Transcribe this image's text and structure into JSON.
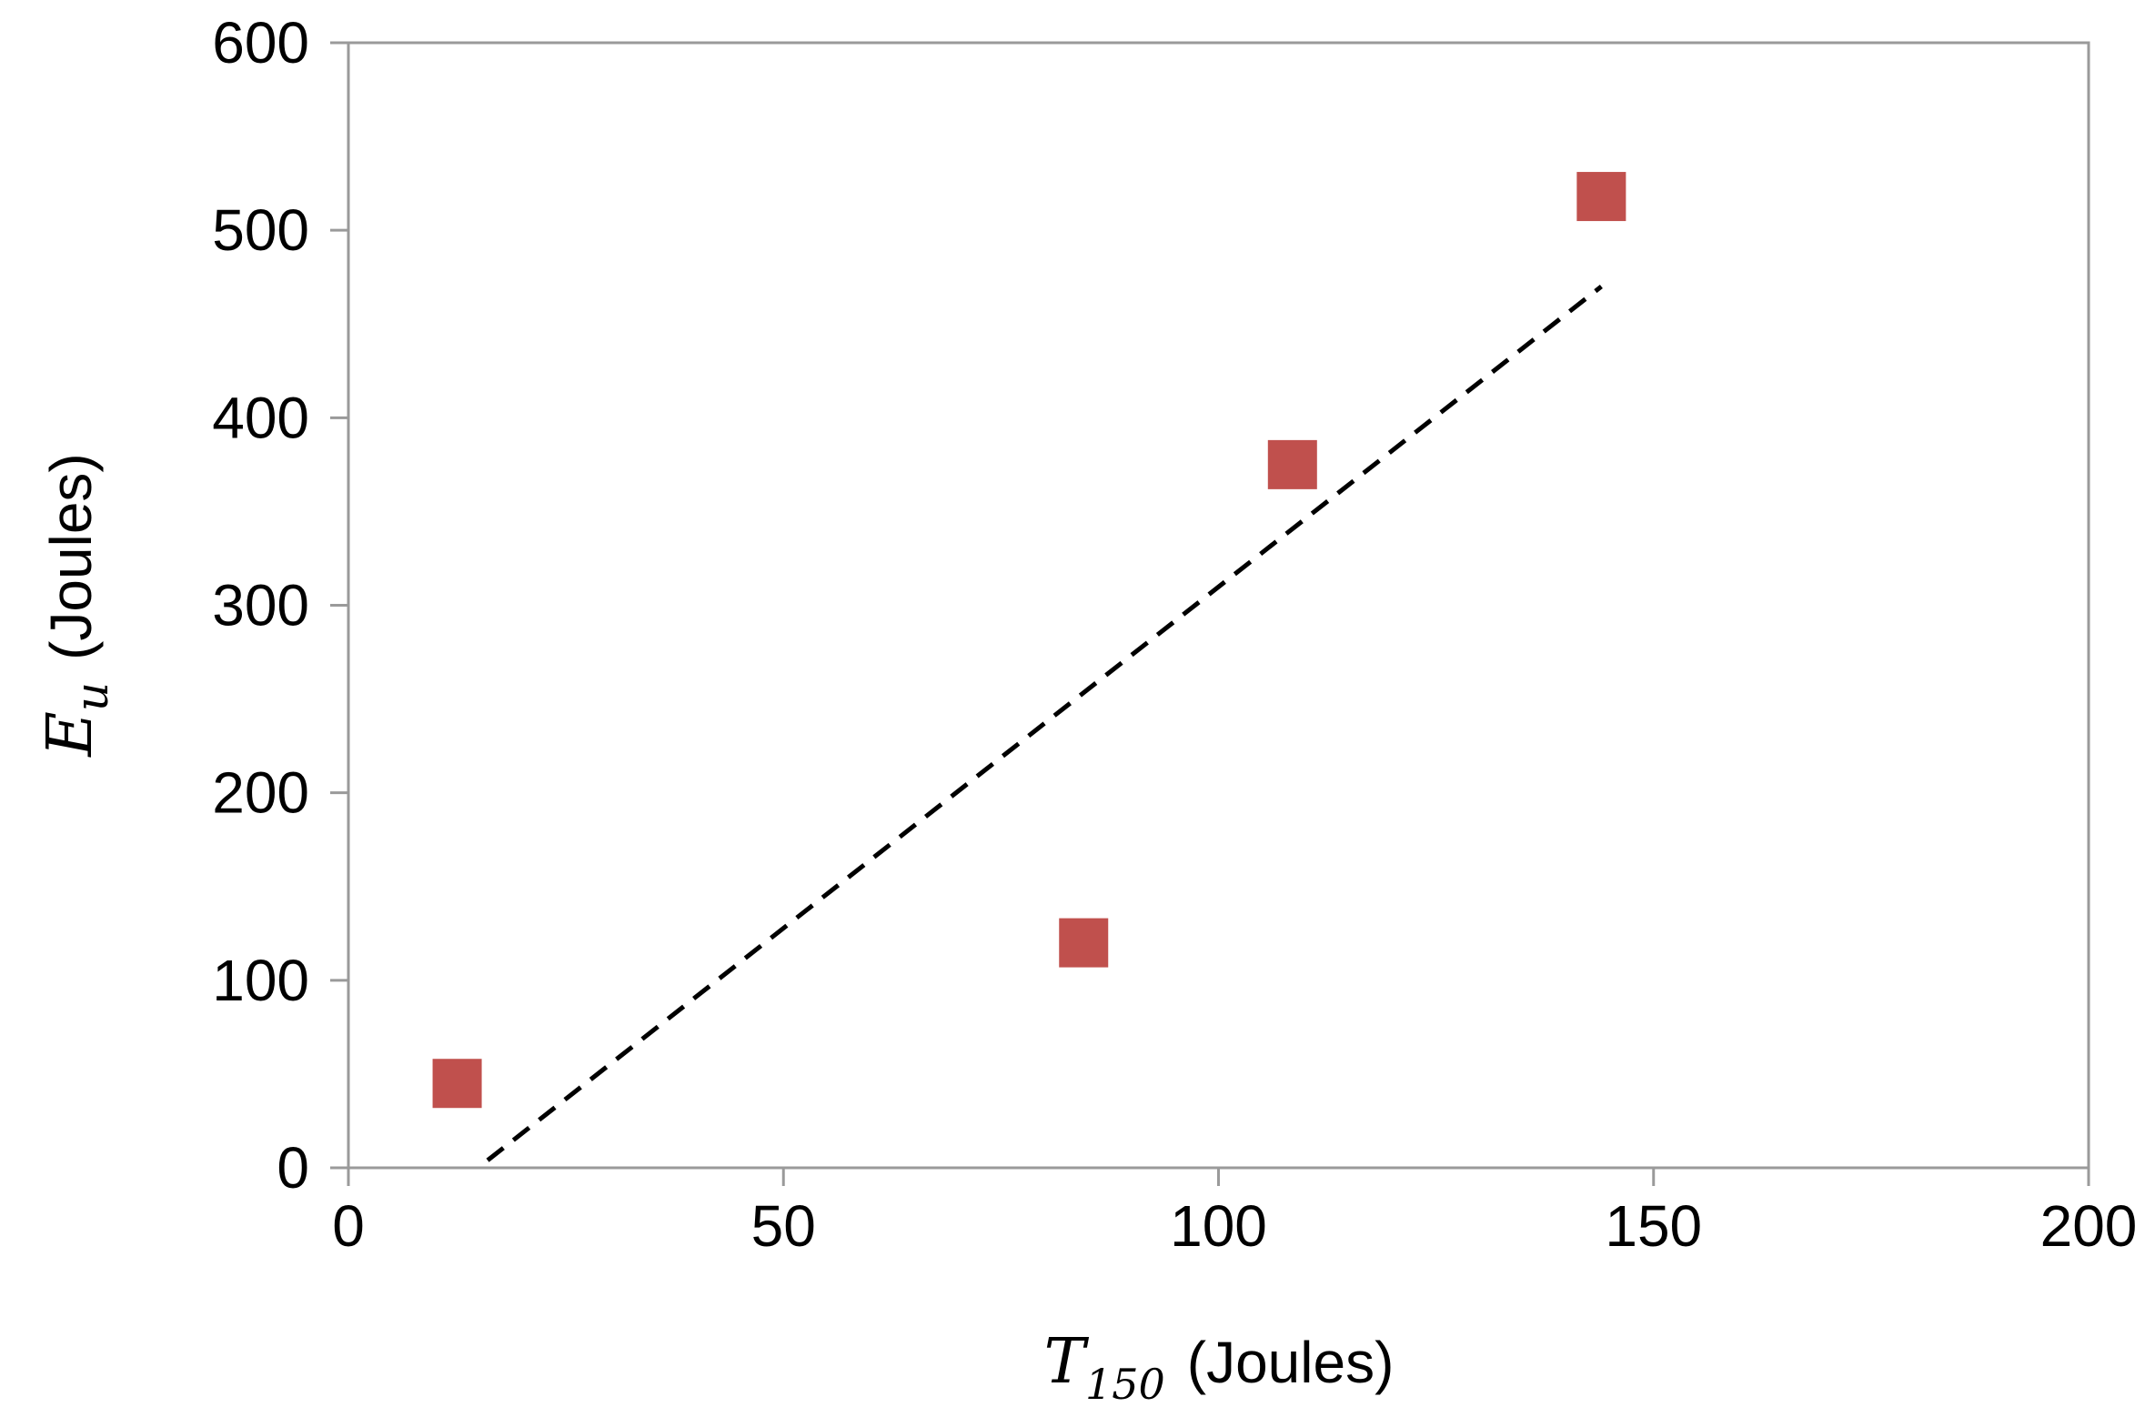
{
  "chart_data": {
    "type": "scatter",
    "xlabel": {
      "symbol": "T",
      "subscript": "150",
      "unit": "(Joules)"
    },
    "ylabel": {
      "symbol": "E",
      "subscript": "u",
      "unit": "(Joules)"
    },
    "xlim": [
      0,
      200
    ],
    "ylim": [
      0,
      600
    ],
    "xticks": [
      0,
      50,
      100,
      150,
      200
    ],
    "yticks": [
      0,
      100,
      200,
      300,
      400,
      500,
      600
    ],
    "grid": false,
    "series": [
      {
        "marker": "square",
        "color": "#c0504d",
        "points": [
          {
            "x": 12.5,
            "y": 45
          },
          {
            "x": 84.5,
            "y": 120
          },
          {
            "x": 108.5,
            "y": 375
          },
          {
            "x": 144,
            "y": 518
          }
        ]
      }
    ],
    "trendline": {
      "style": "dashed",
      "color": "#000000",
      "x_start": 16,
      "x_end": 144,
      "y_start": 4,
      "y_end": 470
    }
  }
}
